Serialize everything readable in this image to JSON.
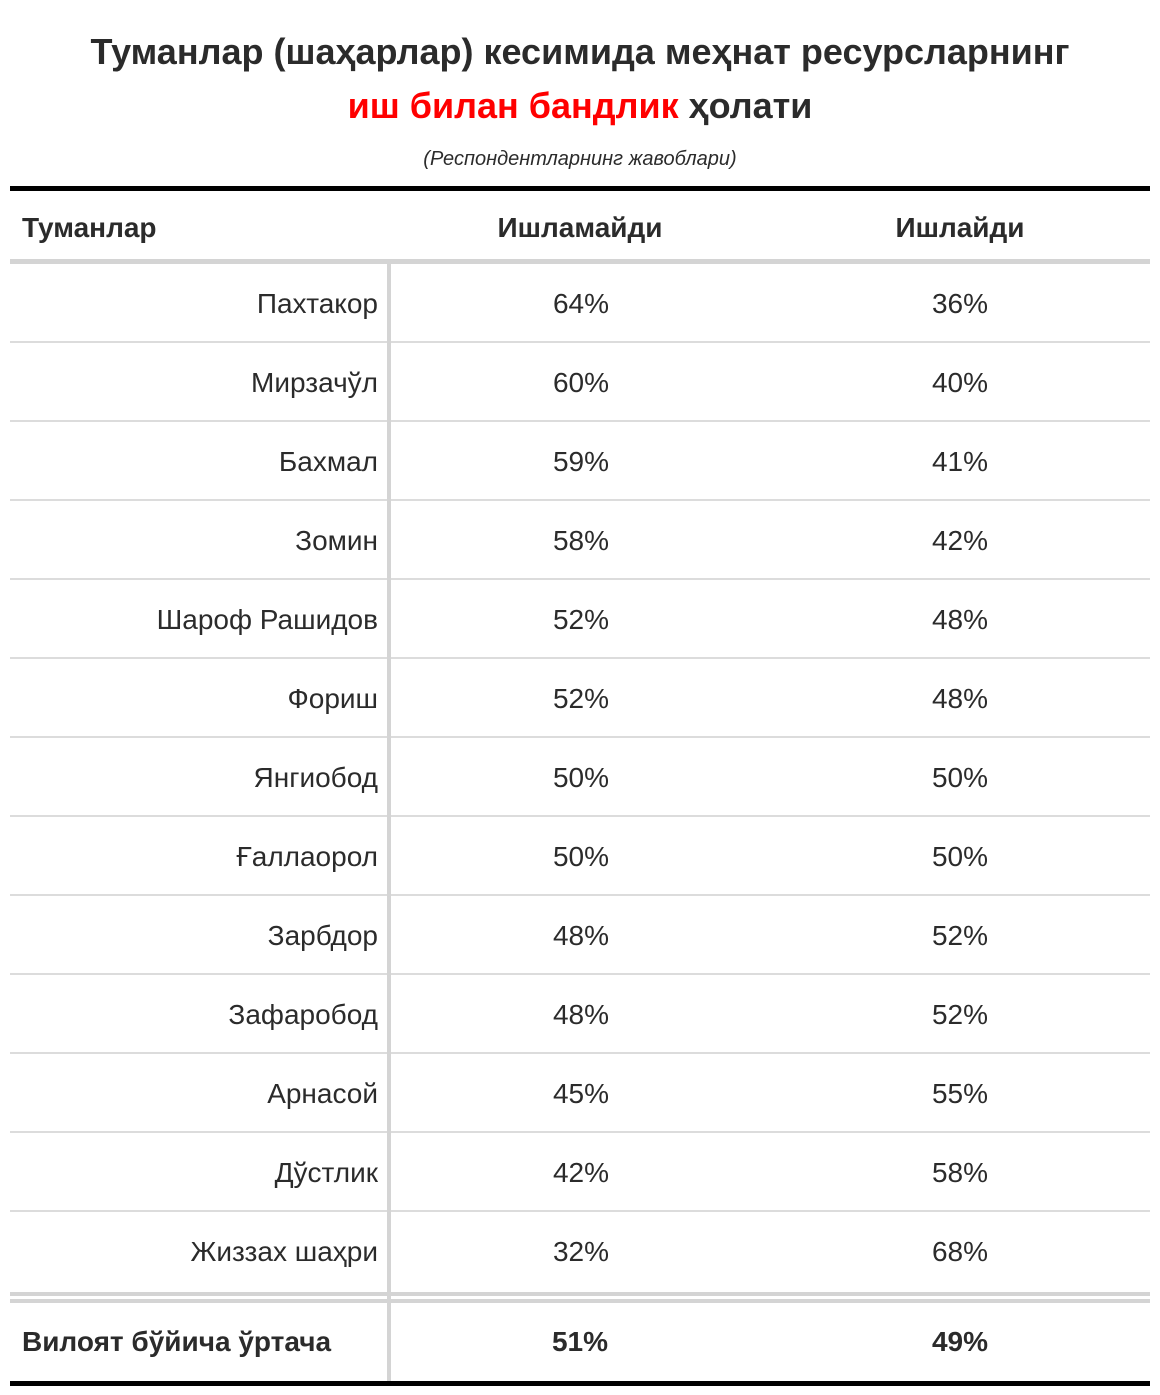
{
  "title": {
    "line1": "Туманлар (шаҳарлар) кесимида меҳнат ресурсларнинг",
    "line2_accent": "иш билан бандлик",
    "line2_rest": " ҳолати"
  },
  "subtitle": "(Респондентларнинг жавоблари)",
  "colors": {
    "accent": "#ff0000",
    "text": "#2b2b2b",
    "rule": "#000000",
    "grid": "#d4d4d4"
  },
  "chart_data": {
    "type": "table",
    "columns": [
      "Туманлар",
      "Ишламайди",
      "Ишлайди"
    ],
    "rows": [
      [
        "Пахтакор",
        "64%",
        "36%"
      ],
      [
        "Мирзачўл",
        "60%",
        "40%"
      ],
      [
        "Бахмал",
        "59%",
        "41%"
      ],
      [
        "Зомин",
        "58%",
        "42%"
      ],
      [
        "Шароф Рашидов",
        "52%",
        "48%"
      ],
      [
        "Фориш",
        "52%",
        "48%"
      ],
      [
        "Янгиобод",
        "50%",
        "50%"
      ],
      [
        "Ғаллаорол",
        "50%",
        "50%"
      ],
      [
        "Зарбдор",
        "48%",
        "52%"
      ],
      [
        "Зафаробод",
        "48%",
        "52%"
      ],
      [
        "Арнасой",
        "45%",
        "55%"
      ],
      [
        "Дўстлик",
        "42%",
        "58%"
      ],
      [
        "Жиззах шаҳри",
        "32%",
        "68%"
      ]
    ],
    "footer": [
      "Вилоят бўйича ўртача",
      "51%",
      "49%"
    ]
  }
}
